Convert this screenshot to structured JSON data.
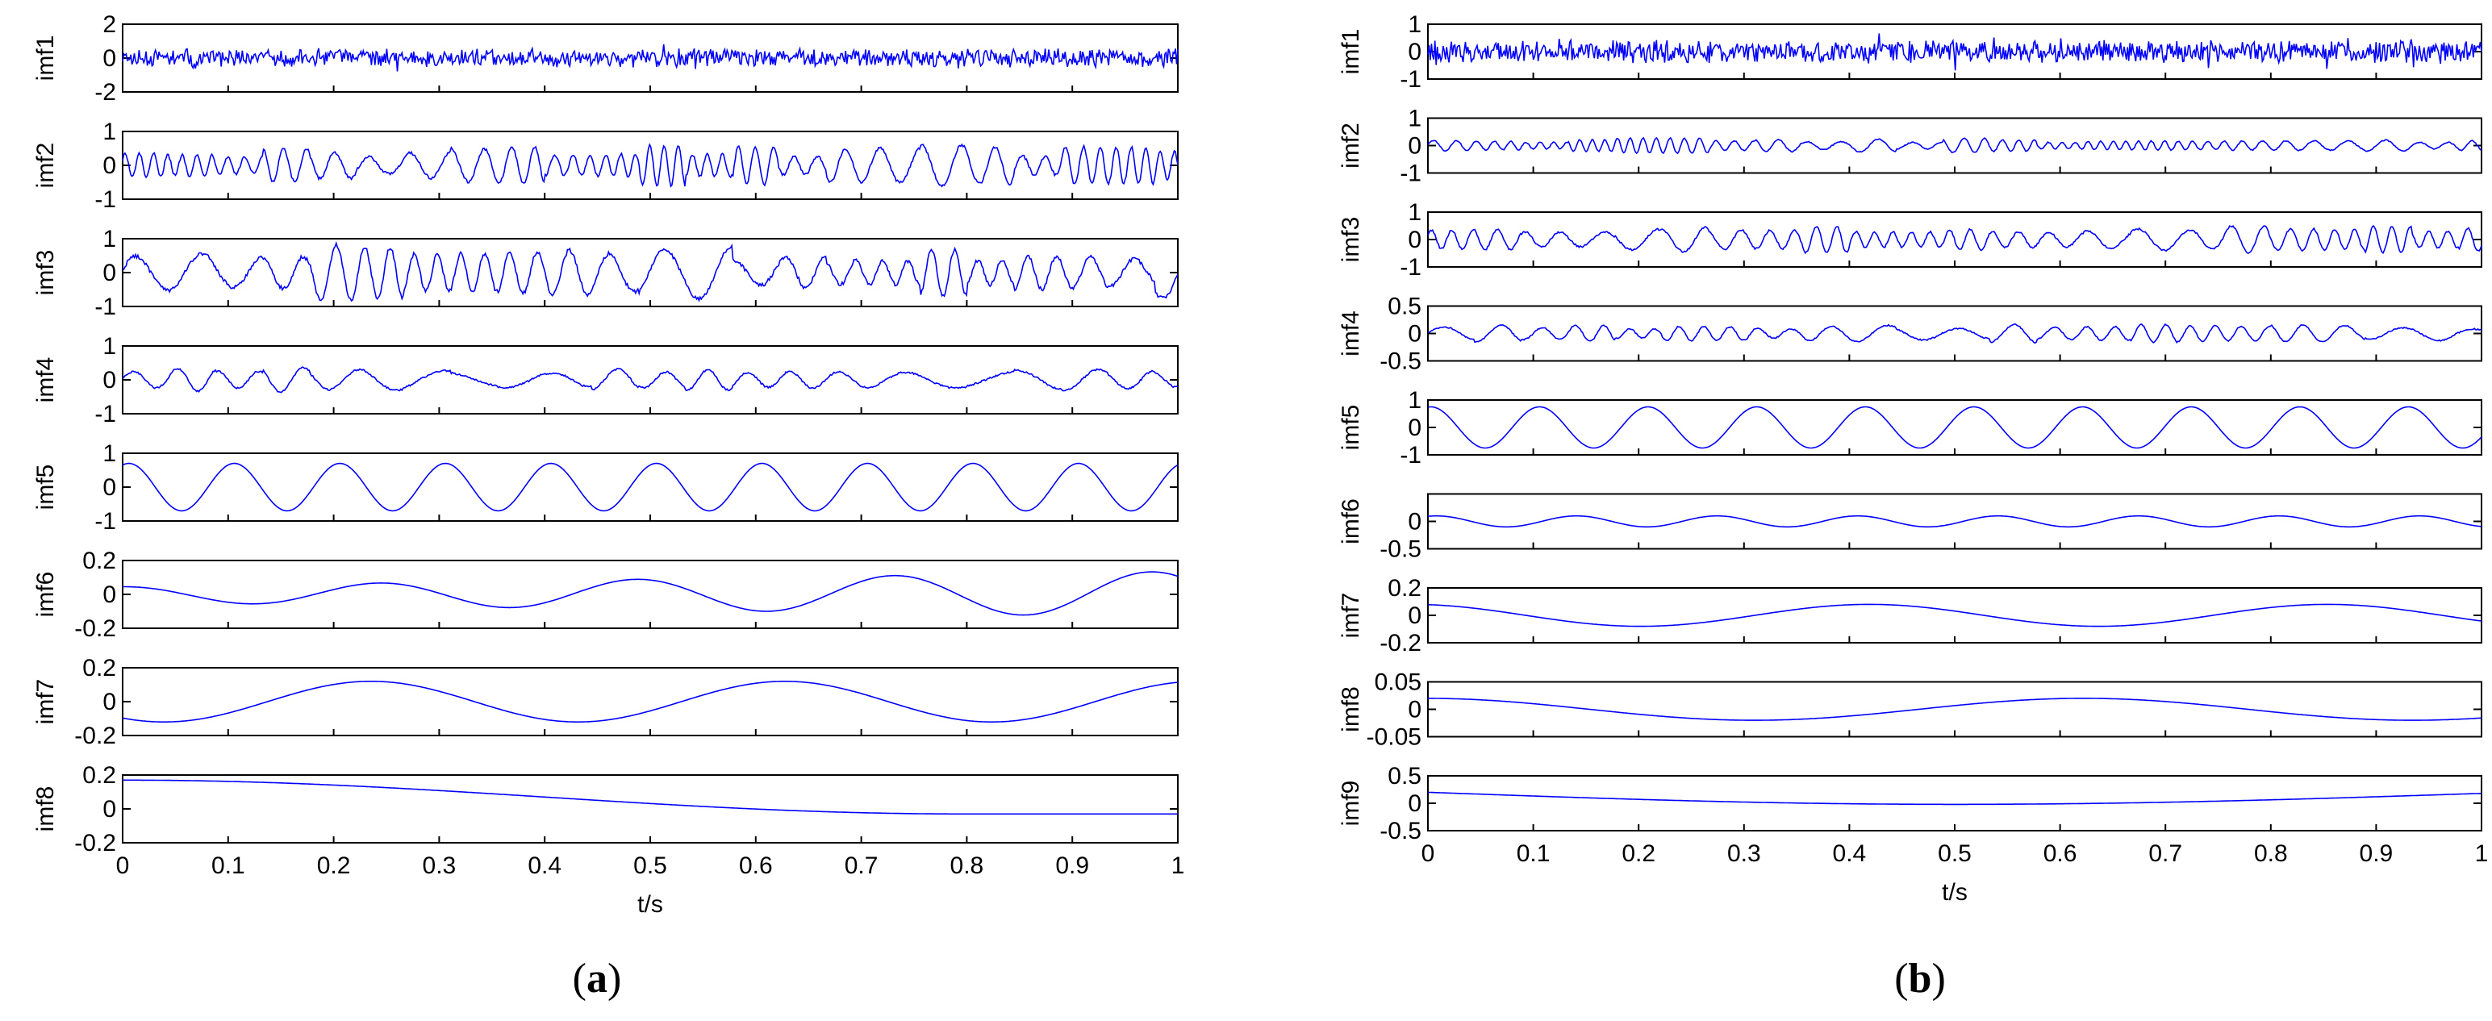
{
  "figure": {
    "caption_a": "a",
    "caption_b": "b"
  },
  "chart_data": [
    {
      "type": "line",
      "panel": "a",
      "xlabel": "t/s",
      "xlim": [
        0,
        1
      ],
      "x_ticks": [
        "0",
        "0.1",
        "0.2",
        "0.3",
        "0.4",
        "0.5",
        "0.6",
        "0.7",
        "0.8",
        "0.9",
        "1"
      ],
      "line_color": "#0000ff",
      "series": [
        {
          "name": "imf1",
          "ylim": [
            -2,
            2
          ],
          "yticks": [
            2,
            0,
            -2
          ],
          "signal": {
            "kind": "noise",
            "amp": 0.6,
            "freqs": []
          }
        },
        {
          "name": "imf2",
          "ylim": [
            -1,
            1
          ],
          "yticks": [
            1,
            0,
            -1
          ],
          "signal": {
            "kind": "osc",
            "freq": 62,
            "amp": 0.55
          }
        },
        {
          "name": "imf3",
          "ylim": [
            -1,
            1
          ],
          "yticks": [
            1,
            0,
            -1
          ],
          "signal": {
            "kind": "osc",
            "freq": 38,
            "amp": 0.75
          }
        },
        {
          "name": "imf4",
          "ylim": [
            -1,
            1
          ],
          "yticks": [
            1,
            0,
            -1
          ],
          "signal": {
            "kind": "osc",
            "freq": 22,
            "amp": 0.35
          }
        },
        {
          "name": "imf5",
          "ylim": [
            -1,
            1
          ],
          "yticks": [
            1,
            0,
            -1
          ],
          "signal": {
            "kind": "sine",
            "freq": 10,
            "amp": 0.7,
            "phase": 1.2
          }
        },
        {
          "name": "imf6",
          "ylim": [
            -0.2,
            0.2
          ],
          "yticks": [
            0.2,
            0,
            -0.2
          ],
          "signal": {
            "kind": "sine",
            "freq": 4.1,
            "amp": 0.09,
            "phase": 1.6,
            "growth": 0.1
          }
        },
        {
          "name": "imf7",
          "ylim": [
            -0.2,
            0.2
          ],
          "yticks": [
            0.2,
            0,
            -0.2
          ],
          "signal": {
            "kind": "sine",
            "freq": 2.55,
            "amp": 0.12,
            "phase": -2.2
          }
        },
        {
          "name": "imf8",
          "ylim": [
            -0.2,
            0.2
          ],
          "yticks": [
            0.2,
            0,
            -0.2
          ],
          "signal": {
            "kind": "trend",
            "start": 0.17,
            "end": -0.03
          }
        }
      ]
    },
    {
      "type": "line",
      "panel": "b",
      "xlabel": "t/s",
      "xlim": [
        0,
        1
      ],
      "x_ticks": [
        "0",
        "0.1",
        "0.2",
        "0.3",
        "0.4",
        "0.5",
        "0.6",
        "0.7",
        "0.8",
        "0.9",
        "1"
      ],
      "line_color": "#0000ff",
      "series": [
        {
          "name": "imf1",
          "ylim": [
            -1,
            1
          ],
          "yticks": [
            1,
            0,
            -1
          ],
          "signal": {
            "kind": "noise",
            "amp": 0.45,
            "freqs": []
          }
        },
        {
          "name": "imf2",
          "ylim": [
            -1,
            1
          ],
          "yticks": [
            1,
            0,
            -1
          ],
          "signal": {
            "kind": "osc",
            "freq": 70,
            "amp": 0.25
          }
        },
        {
          "name": "imf3",
          "ylim": [
            -1,
            1
          ],
          "yticks": [
            1,
            0,
            -1
          ],
          "signal": {
            "kind": "osc",
            "freq": 48,
            "amp": 0.45
          }
        },
        {
          "name": "imf4",
          "ylim": [
            -0.5,
            0.5
          ],
          "yticks": [
            0.5,
            0,
            -0.5
          ],
          "signal": {
            "kind": "osc",
            "freq": 36,
            "amp": 0.15
          }
        },
        {
          "name": "imf5",
          "ylim": [
            -1,
            1
          ],
          "yticks": [
            1,
            0,
            -1
          ],
          "signal": {
            "kind": "sine",
            "freq": 9.7,
            "amp": 0.75,
            "phase": 1.4
          }
        },
        {
          "name": "imf6",
          "ylim": [
            -0.5,
            0.5
          ],
          "yticks": [
            0,
            -0.5
          ],
          "signal": {
            "kind": "sine",
            "freq": 7.5,
            "amp": 0.1,
            "phase": 1.2
          }
        },
        {
          "name": "imf7",
          "ylim": [
            -0.2,
            0.2
          ],
          "yticks": [
            0.2,
            0,
            -0.2
          ],
          "signal": {
            "kind": "sine",
            "freq": 2.3,
            "amp": 0.08,
            "phase": 1.8
          }
        },
        {
          "name": "imf8",
          "ylim": [
            -0.05,
            0.05
          ],
          "yticks": [
            0.05,
            0,
            -0.05
          ],
          "signal": {
            "kind": "sine",
            "freq": 1.6,
            "amp": 0.02,
            "phase": 1.6
          }
        },
        {
          "name": "imf9",
          "ylim": [
            -0.5,
            0.5
          ],
          "yticks": [
            0.5,
            0,
            -0.5
          ],
          "signal": {
            "kind": "bowl",
            "start": 0.2,
            "min": -0.02,
            "end": 0.18
          }
        }
      ]
    }
  ]
}
